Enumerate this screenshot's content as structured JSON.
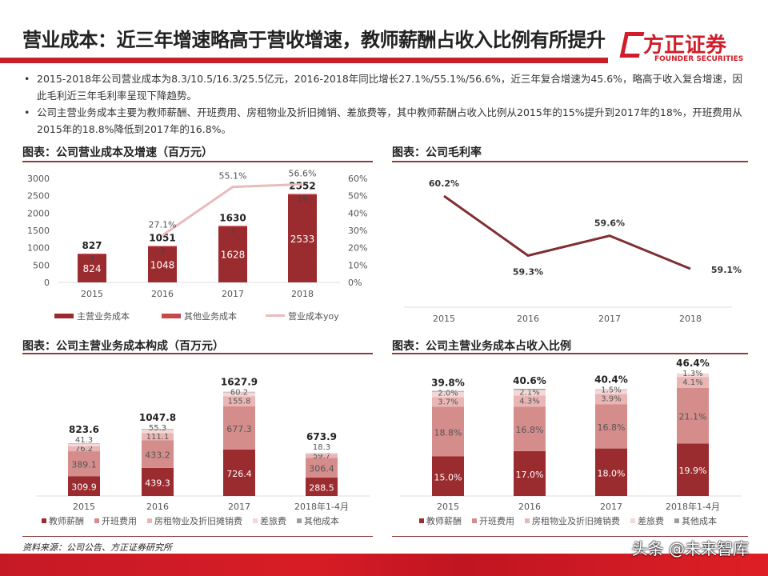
{
  "header": {
    "title": "营业成本：近三年增速略高于营收增速，教师薪酬占收入比例有所提升",
    "logo_cn": "方正证券",
    "logo_en": "FOUNDER SECURITIES"
  },
  "bullets": [
    "2015-2018年公司营业成本为8.3/10.5/16.3/25.5亿元，2016-2018年同比增长27.1%/55.1%/56.6%，近三年复合增速为45.6%，略高于收入复合增速，因此毛利近三年毛利率呈现下降趋势。",
    "公司主营业务成本主要为教师薪酬、开班费用、房租物业及折旧摊销、差旅费等，其中教师薪酬占收入比例从2015年的15%提升到2017年的18%，开班费用从2015年的18.8%降低到2017年的16.8%。"
  ],
  "footer": {
    "source": "资料来源：公司公告、方正证券研究所",
    "watermark": "头条 @未来智库"
  },
  "colors": {
    "dark": "#9a2c2f",
    "mid": "#d58d8c",
    "light": "#e9b5b5",
    "lighter": "#f4d8d8",
    "grey": "#9e9e9e",
    "yoy": "#e8bcbc"
  },
  "chart_data": [
    {
      "section_title": "图表：公司营业成本及增速（百万元）",
      "type": "bar",
      "stacked": true,
      "categories": [
        "2015",
        "2016",
        "2017",
        "2018"
      ],
      "series": [
        {
          "name": "主营业务成本",
          "values": [
            824,
            1048,
            1628,
            2533
          ]
        },
        {
          "name": "其他业务成本",
          "values": [
            3,
            3,
            2,
            19
          ]
        }
      ],
      "totals": [
        827,
        1051,
        1630,
        2552
      ],
      "line": {
        "name": "营业成本yoy",
        "values": [
          null,
          27.1,
          55.1,
          56.6
        ],
        "labels": [
          "",
          "27.1%",
          "55.1%",
          "56.6%"
        ]
      },
      "ylim": [
        0,
        3000
      ],
      "yticks": [
        "3000",
        "2500",
        "2000",
        "1500",
        "1000",
        "500",
        "0"
      ],
      "y2lim": [
        0,
        60
      ],
      "y2ticks": [
        "60%",
        "50%",
        "40%",
        "30%",
        "20%",
        "10%",
        "0%"
      ]
    },
    {
      "section_title": "图表：公司毛利率",
      "type": "line",
      "categories": [
        "2015",
        "2016",
        "2017",
        "2018"
      ],
      "values": [
        60.2,
        59.3,
        59.6,
        59.1
      ],
      "labels": [
        "60.2%",
        "59.3%",
        "59.6%",
        "59.1%"
      ],
      "ylim": [
        58.5,
        60.5
      ]
    },
    {
      "section_title": "图表：公司主营业务成本构成（百万元）",
      "type": "bar",
      "stacked": true,
      "categories": [
        "2015",
        "2016",
        "2017",
        "2018年1-4月"
      ],
      "series": [
        {
          "name": "教师薪酬",
          "values": [
            309.9,
            439.3,
            726.4,
            288.5
          ]
        },
        {
          "name": "开班费用",
          "values": [
            389.1,
            433.2,
            677.3,
            306.4
          ]
        },
        {
          "name": "房租物业及折旧摊销费",
          "values": [
            76.2,
            111.1,
            155.8,
            59.7
          ]
        },
        {
          "name": "差旅费",
          "values": [
            41.3,
            55.3,
            60.2,
            18.3
          ]
        },
        {
          "name": "其他成本",
          "values": [
            7.1,
            8.9,
            8.2,
            1.0
          ]
        }
      ],
      "labels": [
        [
          "309.9",
          "389.1",
          "76.2",
          "41.3",
          ""
        ],
        [
          "439.3",
          "433.2",
          "111.1",
          "55.3",
          ""
        ],
        [
          "726.4",
          "677.3",
          "155.8",
          "60.2",
          ""
        ],
        [
          "288.5",
          "306.4",
          "59.7",
          "18.3",
          ""
        ]
      ],
      "totals": [
        "823.6",
        "1047.8",
        "1627.9",
        "673.9"
      ],
      "ylim": [
        0,
        1700
      ]
    },
    {
      "section_title": "图表：公司主营业务成本占收入比例",
      "type": "bar",
      "stacked": true,
      "categories": [
        "2015",
        "2016",
        "2017",
        "2018年1-4月"
      ],
      "series": [
        {
          "name": "教师薪酬",
          "values": [
            15.0,
            17.0,
            18.0,
            19.9
          ]
        },
        {
          "name": "开班费用",
          "values": [
            18.8,
            16.8,
            16.8,
            21.1
          ]
        },
        {
          "name": "房租物业及折旧摊销费",
          "values": [
            3.7,
            4.3,
            3.9,
            4.1
          ]
        },
        {
          "name": "差旅费",
          "values": [
            2.0,
            2.1,
            1.5,
            1.3
          ]
        },
        {
          "name": "其他成本",
          "values": [
            0.3,
            0.4,
            0.2,
            0.0
          ]
        }
      ],
      "labels": [
        [
          "15.0%",
          "18.8%",
          "3.7%",
          "2.0%",
          ""
        ],
        [
          "17.0%",
          "16.8%",
          "4.3%",
          "2.1%",
          ""
        ],
        [
          "18.0%",
          "16.8%",
          "3.9%",
          "1.5%",
          ""
        ],
        [
          "19.9%",
          "21.1%",
          "4.1%",
          "1.3%",
          ""
        ]
      ],
      "totals": [
        "39.8%",
        "40.6%",
        "40.4%",
        "46.4%"
      ],
      "ylim": [
        0,
        48
      ]
    }
  ]
}
